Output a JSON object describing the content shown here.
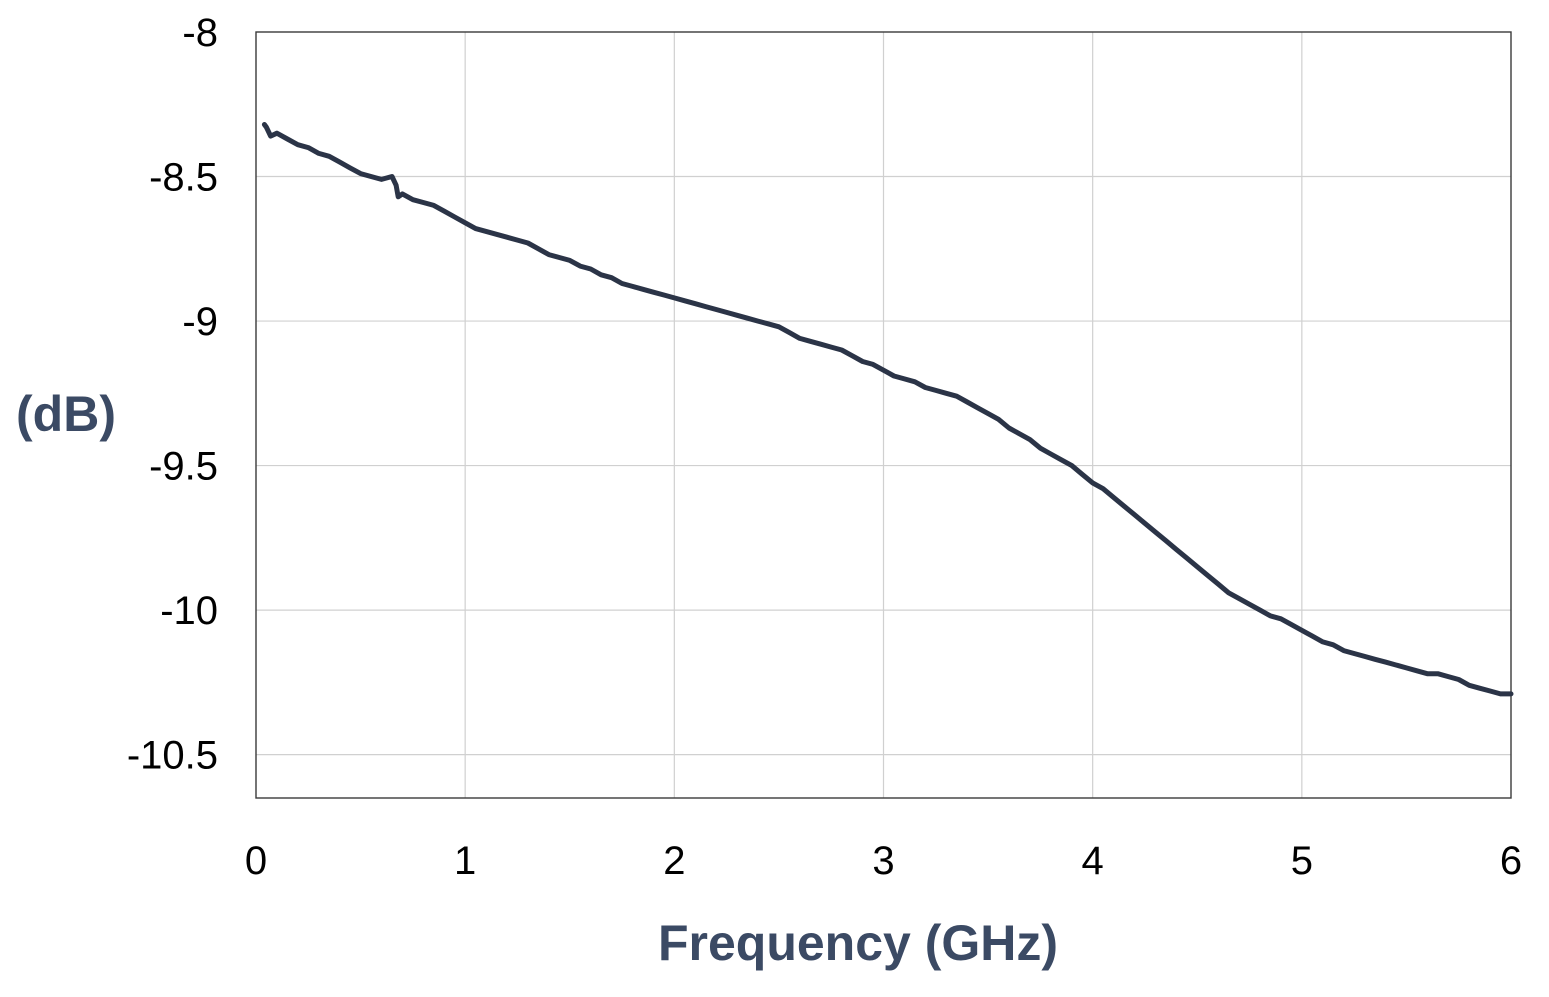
{
  "chart_data": {
    "type": "line",
    "title": "",
    "xlabel": "Frequency (GHz)",
    "ylabel": "(dB)",
    "xlim": [
      0,
      6
    ],
    "ylim": [
      -10.65,
      -8
    ],
    "x_ticks": [
      0,
      1,
      2,
      3,
      4,
      5,
      6
    ],
    "x_tick_labels": [
      "0",
      "1",
      "2",
      "3",
      "4",
      "5",
      "6"
    ],
    "y_ticks": [
      -8,
      -8.5,
      -9,
      -9.5,
      -10,
      -10.5
    ],
    "y_tick_labels": [
      "-8",
      "-8.5",
      "-9",
      "-9.5",
      "-10",
      "-10.5"
    ],
    "grid": true,
    "legend": "none",
    "series": [
      {
        "color": "#2b3447",
        "x": [
          0.04,
          0.05,
          0.07,
          0.1,
          0.15,
          0.2,
          0.25,
          0.3,
          0.35,
          0.4,
          0.45,
          0.5,
          0.55,
          0.6,
          0.65,
          0.67,
          0.68,
          0.7,
          0.75,
          0.8,
          0.85,
          0.9,
          0.95,
          1.0,
          1.05,
          1.1,
          1.15,
          1.2,
          1.25,
          1.3,
          1.35,
          1.4,
          1.45,
          1.5,
          1.55,
          1.6,
          1.65,
          1.7,
          1.75,
          1.8,
          1.85,
          1.9,
          1.95,
          2.0,
          2.05,
          2.1,
          2.15,
          2.2,
          2.25,
          2.3,
          2.35,
          2.4,
          2.45,
          2.5,
          2.55,
          2.6,
          2.65,
          2.7,
          2.75,
          2.8,
          2.85,
          2.9,
          2.95,
          3.0,
          3.05,
          3.1,
          3.15,
          3.2,
          3.25,
          3.3,
          3.35,
          3.4,
          3.45,
          3.5,
          3.55,
          3.6,
          3.65,
          3.7,
          3.75,
          3.8,
          3.85,
          3.9,
          3.95,
          4.0,
          4.05,
          4.1,
          4.15,
          4.2,
          4.25,
          4.3,
          4.35,
          4.4,
          4.45,
          4.5,
          4.55,
          4.6,
          4.65,
          4.7,
          4.75,
          4.8,
          4.85,
          4.9,
          4.95,
          5.0,
          5.05,
          5.1,
          5.15,
          5.2,
          5.25,
          5.3,
          5.35,
          5.4,
          5.45,
          5.5,
          5.55,
          5.6,
          5.65,
          5.7,
          5.75,
          5.8,
          5.85,
          5.9,
          5.95,
          6.0
        ],
        "y": [
          -8.32,
          -8.33,
          -8.36,
          -8.35,
          -8.37,
          -8.39,
          -8.4,
          -8.42,
          -8.43,
          -8.45,
          -8.47,
          -8.49,
          -8.5,
          -8.51,
          -8.5,
          -8.53,
          -8.57,
          -8.56,
          -8.58,
          -8.59,
          -8.6,
          -8.62,
          -8.64,
          -8.66,
          -8.68,
          -8.69,
          -8.7,
          -8.71,
          -8.72,
          -8.73,
          -8.75,
          -8.77,
          -8.78,
          -8.79,
          -8.81,
          -8.82,
          -8.84,
          -8.85,
          -8.87,
          -8.88,
          -8.89,
          -8.9,
          -8.91,
          -8.92,
          -8.93,
          -8.94,
          -8.95,
          -8.96,
          -8.97,
          -8.98,
          -8.99,
          -9.0,
          -9.01,
          -9.02,
          -9.04,
          -9.06,
          -9.07,
          -9.08,
          -9.09,
          -9.1,
          -9.12,
          -9.14,
          -9.15,
          -9.17,
          -9.19,
          -9.2,
          -9.21,
          -9.23,
          -9.24,
          -9.25,
          -9.26,
          -9.28,
          -9.3,
          -9.32,
          -9.34,
          -9.37,
          -9.39,
          -9.41,
          -9.44,
          -9.46,
          -9.48,
          -9.5,
          -9.53,
          -9.56,
          -9.58,
          -9.61,
          -9.64,
          -9.67,
          -9.7,
          -9.73,
          -9.76,
          -9.79,
          -9.82,
          -9.85,
          -9.88,
          -9.91,
          -9.94,
          -9.96,
          -9.98,
          -10.0,
          -10.02,
          -10.03,
          -10.05,
          -10.07,
          -10.09,
          -10.11,
          -10.12,
          -10.14,
          -10.15,
          -10.16,
          -10.17,
          -10.18,
          -10.19,
          -10.2,
          -10.21,
          -10.22,
          -10.22,
          -10.23,
          -10.24,
          -10.26,
          -10.27,
          -10.28,
          -10.29,
          -10.29
        ]
      }
    ]
  }
}
